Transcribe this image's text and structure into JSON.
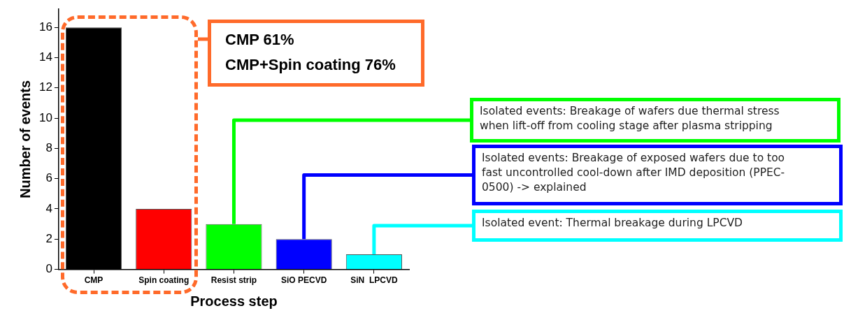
{
  "chart_data": {
    "type": "bar",
    "categories": [
      "CMP",
      "Spin coating",
      "Resist strip",
      "SiO PECVD",
      "SiN  LPCVD"
    ],
    "values": [
      16,
      4,
      3,
      2,
      1
    ],
    "colors": [
      "#000000",
      "#ff0000",
      "#00ff00",
      "#0000ff",
      "#00ffff"
    ],
    "ylabel": "Number of events",
    "xlabel": "Process step",
    "ylim": [
      0,
      17.2
    ],
    "yticks": [
      0,
      2,
      4,
      6,
      8,
      10,
      12,
      14,
      16
    ],
    "grid": false,
    "legend": false,
    "annotations": [
      "CMP 61%\nCMP+Spin coating 76%",
      {
        "text": "Isolated events: Breakage of wafers due thermal stress when lift-off from cooling stage after plasma stripping",
        "x": "Resist strip",
        "y": 3
      },
      {
        "text": "Isolated events: Breakage of exposed wafers due to too fast uncontrolled  cool-down after IMD deposition (PPEC-0500) -> explained",
        "x": "SiO PECVD",
        "y": 2
      },
      {
        "text": "Isolated event: Thermal breakage during LPCVD",
        "x": "SiN  LPCVD",
        "y": 1
      }
    ]
  }
}
